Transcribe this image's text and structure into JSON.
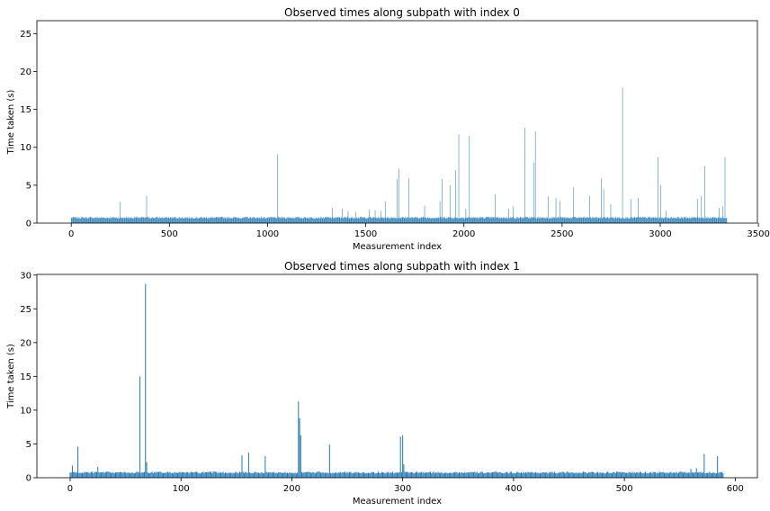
{
  "chart_data": [
    {
      "type": "bar",
      "title": "Observed times along subpath with index 0",
      "xlabel": "Measurement index",
      "ylabel": "Time taken (s)",
      "xlim": [
        -175,
        3495
      ],
      "ylim": [
        0,
        26.7
      ],
      "xticks": [
        0,
        500,
        1000,
        1500,
        2000,
        2500,
        3000,
        3500
      ],
      "yticks": [
        0,
        5,
        10,
        15,
        20,
        25
      ],
      "n_points": 3340,
      "baseline_value": 0.7,
      "color": "#1f77b4",
      "grid": false,
      "spikes": [
        {
          "x": 250,
          "y": 2.8
        },
        {
          "x": 385,
          "y": 3.6
        },
        {
          "x": 1052,
          "y": 9.1
        },
        {
          "x": 1330,
          "y": 2.0
        },
        {
          "x": 1380,
          "y": 1.9
        },
        {
          "x": 1410,
          "y": 1.6
        },
        {
          "x": 1450,
          "y": 1.5
        },
        {
          "x": 1520,
          "y": 1.8
        },
        {
          "x": 1550,
          "y": 1.7
        },
        {
          "x": 1580,
          "y": 1.6
        },
        {
          "x": 1600,
          "y": 2.9
        },
        {
          "x": 1660,
          "y": 5.8
        },
        {
          "x": 1668,
          "y": 7.2
        },
        {
          "x": 1720,
          "y": 5.9
        },
        {
          "x": 1800,
          "y": 2.3
        },
        {
          "x": 1880,
          "y": 2.9
        },
        {
          "x": 1892,
          "y": 5.8
        },
        {
          "x": 1930,
          "y": 5.0
        },
        {
          "x": 1960,
          "y": 7.0
        },
        {
          "x": 1975,
          "y": 11.7
        },
        {
          "x": 2010,
          "y": 1.9
        },
        {
          "x": 2030,
          "y": 11.5
        },
        {
          "x": 2160,
          "y": 3.8
        },
        {
          "x": 2230,
          "y": 1.9
        },
        {
          "x": 2250,
          "y": 2.2
        },
        {
          "x": 2310,
          "y": 12.6
        },
        {
          "x": 2355,
          "y": 8.0
        },
        {
          "x": 2365,
          "y": 12.1
        },
        {
          "x": 2430,
          "y": 3.5
        },
        {
          "x": 2470,
          "y": 3.3
        },
        {
          "x": 2490,
          "y": 2.9
        },
        {
          "x": 2560,
          "y": 4.7
        },
        {
          "x": 2640,
          "y": 3.6
        },
        {
          "x": 2700,
          "y": 5.9
        },
        {
          "x": 2712,
          "y": 4.5
        },
        {
          "x": 2750,
          "y": 2.5
        },
        {
          "x": 2810,
          "y": 17.9
        },
        {
          "x": 2850,
          "y": 3.2
        },
        {
          "x": 2890,
          "y": 3.3
        },
        {
          "x": 2990,
          "y": 8.7
        },
        {
          "x": 3005,
          "y": 5.0
        },
        {
          "x": 3030,
          "y": 1.6
        },
        {
          "x": 3190,
          "y": 3.2
        },
        {
          "x": 3210,
          "y": 3.6
        },
        {
          "x": 3228,
          "y": 7.5
        },
        {
          "x": 3300,
          "y": 2.0
        },
        {
          "x": 3320,
          "y": 2.2
        },
        {
          "x": 3332,
          "y": 8.7
        }
      ]
    },
    {
      "type": "bar",
      "title": "Observed times along subpath with index 1",
      "xlabel": "Measurement index",
      "ylabel": "Time taken (s)",
      "xlim": [
        -30,
        620
      ],
      "ylim": [
        0,
        30.1
      ],
      "xticks": [
        0,
        100,
        200,
        300,
        400,
        500,
        600
      ],
      "yticks": [
        0,
        5,
        10,
        15,
        20,
        25,
        30
      ],
      "n_points": 590,
      "baseline_value": 0.75,
      "color": "#1f77b4",
      "grid": false,
      "spikes": [
        {
          "x": 2,
          "y": 1.8
        },
        {
          "x": 7,
          "y": 4.6
        },
        {
          "x": 25,
          "y": 1.6
        },
        {
          "x": 63,
          "y": 15.0
        },
        {
          "x": 68,
          "y": 28.7
        },
        {
          "x": 69,
          "y": 2.3
        },
        {
          "x": 155,
          "y": 3.3
        },
        {
          "x": 161,
          "y": 3.7
        },
        {
          "x": 176,
          "y": 3.2
        },
        {
          "x": 206,
          "y": 11.3
        },
        {
          "x": 207,
          "y": 8.8
        },
        {
          "x": 208,
          "y": 6.3
        },
        {
          "x": 234,
          "y": 4.9
        },
        {
          "x": 298,
          "y": 6.1
        },
        {
          "x": 300,
          "y": 6.3
        },
        {
          "x": 301,
          "y": 2.0
        },
        {
          "x": 560,
          "y": 1.3
        },
        {
          "x": 565,
          "y": 1.4
        },
        {
          "x": 572,
          "y": 3.5
        },
        {
          "x": 584,
          "y": 3.2
        }
      ]
    }
  ]
}
